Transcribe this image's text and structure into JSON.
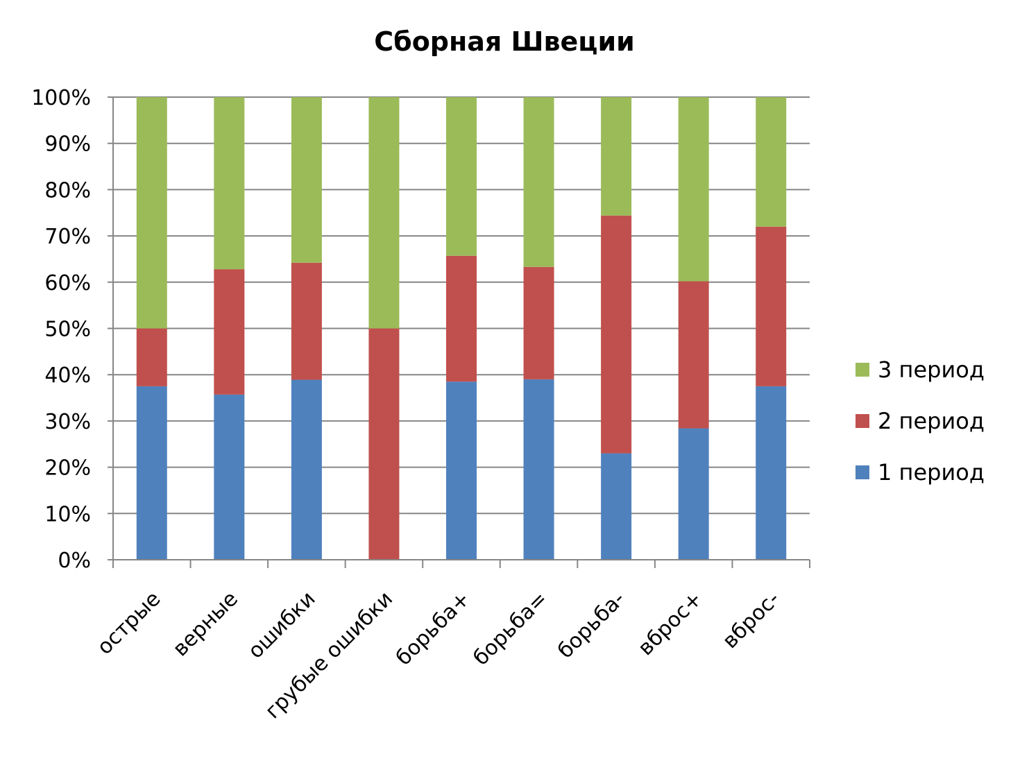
{
  "chart_data": {
    "type": "bar",
    "stacked": "percent",
    "title": "Сборная Швеции",
    "xlabel": "",
    "ylabel": "",
    "ylim": [
      0,
      100
    ],
    "y_ticks": [
      "0%",
      "10%",
      "20%",
      "30%",
      "40%",
      "50%",
      "60%",
      "70%",
      "80%",
      "90%",
      "100%"
    ],
    "grid": true,
    "legend_position": "right",
    "categories": [
      "острые",
      "верные",
      "ошибки",
      "грубые ошибки",
      "борьба+",
      "борьба=",
      "борьба-",
      "вброс+",
      "вброс-"
    ],
    "series": [
      {
        "name": "1 период",
        "color": "#4F81BD",
        "values": [
          37.5,
          35.7,
          38.9,
          0,
          38.5,
          39.0,
          23.0,
          28.4,
          37.5
        ]
      },
      {
        "name": "2 период",
        "color": "#C0504D",
        "values": [
          12.5,
          27.1,
          25.3,
          50.0,
          27.2,
          24.3,
          51.4,
          31.8,
          34.5
        ]
      },
      {
        "name": "3 период",
        "color": "#9BBB59",
        "values": [
          50.0,
          37.2,
          35.8,
          50.0,
          34.3,
          36.7,
          25.6,
          39.8,
          28.0
        ]
      }
    ]
  }
}
